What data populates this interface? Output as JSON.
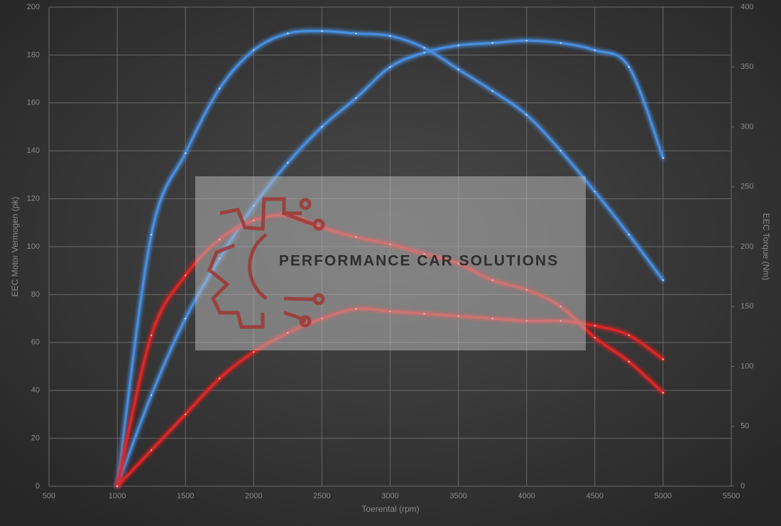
{
  "chart_data": {
    "type": "line",
    "x_label": "Toerental (rpm)",
    "y_label": "EEC Motor Vermogen (pk)",
    "y2_label": "EEC Torque (Nm)",
    "watermark": "PERFORMANCE CAR SOLUTIONS",
    "x": [
      1000,
      1250,
      1500,
      1750,
      2000,
      2250,
      2500,
      2750,
      3000,
      3250,
      3500,
      3750,
      4000,
      4250,
      4500,
      4750,
      5000
    ],
    "series": [
      {
        "color": "#4a8fe0",
        "values": [
          0,
          38,
          70,
          95,
          117,
          135,
          150,
          162,
          175,
          181,
          184,
          185,
          186,
          185,
          182,
          175,
          137
        ]
      },
      {
        "color": "#4a8fe0",
        "axis": "y2",
        "values": [
          0,
          210,
          278,
          332,
          364,
          378,
          380,
          378,
          376,
          366,
          348,
          330,
          310,
          280,
          246,
          210,
          172
        ]
      },
      {
        "color": "#e02828",
        "values": [
          0,
          15,
          30,
          45,
          56,
          64,
          70,
          74,
          73,
          72,
          71,
          70,
          69,
          69,
          67,
          63,
          53
        ]
      },
      {
        "color": "#e02828",
        "axis": "y2",
        "values": [
          0,
          126,
          176,
          206,
          222,
          226,
          216,
          208,
          202,
          194,
          186,
          172,
          164,
          150,
          124,
          104,
          78
        ]
      }
    ],
    "xlim": [
      500,
      5500
    ],
    "xticks": [
      500,
      1000,
      1500,
      2000,
      2500,
      3000,
      3500,
      4000,
      4500,
      5000,
      5500
    ],
    "ylim": [
      0,
      200
    ],
    "yticks": [
      0,
      20,
      40,
      60,
      80,
      100,
      120,
      140,
      160,
      180,
      200
    ],
    "y2lim": [
      0,
      400
    ],
    "y2ticks": [
      0,
      50,
      100,
      150,
      200,
      250,
      300,
      350,
      400
    ],
    "grid": true
  }
}
